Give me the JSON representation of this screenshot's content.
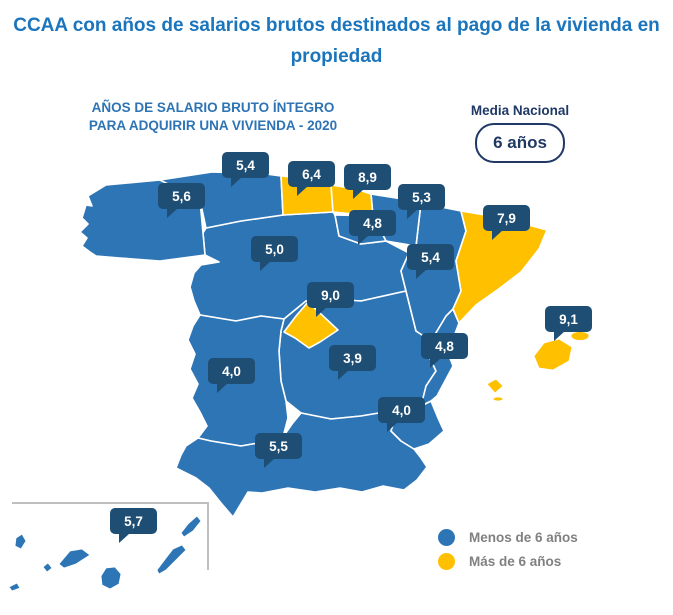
{
  "title": {
    "line1": "CCAA con años de salarios brutos destinados al pago de la vivienda en",
    "line2": "propiedad"
  },
  "subtitle": {
    "line1": "AÑOS DE SALARIO BRUTO ÍNTEGRO",
    "line2": "PARA ADQUIRIR UNA VIVIENDA - 2020"
  },
  "media_nacional": {
    "label": "Media Nacional",
    "value": "6 años"
  },
  "legend": {
    "items": [
      {
        "label": "Menos de 6 años",
        "color": "#2E75B6"
      },
      {
        "label": "Más de 6 años",
        "color": "#FFC000"
      }
    ]
  },
  "colors": {
    "under_6": "#2E75B6",
    "over_6": "#FFC000",
    "tooltip_bg": "#1F4E74",
    "title_blue": "#1B75BC",
    "subtitle_blue": "#2E74B5",
    "navy": "#1F3864",
    "legend_text": "#808080",
    "inset_border": "#BFBFBF"
  },
  "chart_data": {
    "type": "heatmap",
    "subtype": "choropleth_map_spain_ccaa",
    "title": "CCAA con años de salarios brutos destinados al pago de la vivienda en propiedad",
    "subtitle": "AÑOS DE SALARIO BRUTO ÍNTEGRO PARA ADQUIRIR UNA VIVIENDA - 2020",
    "annotation": {
      "label": "Media Nacional",
      "value": "6 años"
    },
    "legend": [
      {
        "label": "Menos de 6 años",
        "color": "#2E75B6"
      },
      {
        "label": "Más de 6 años",
        "color": "#FFC000"
      }
    ],
    "unit": "años de salario bruto",
    "year": "2020",
    "regions": [
      {
        "id": "galicia",
        "name": "Galicia",
        "label": "5,6",
        "value": 5.6,
        "category": "menos_de_6"
      },
      {
        "id": "asturias",
        "name": "Asturias",
        "label": "5,4",
        "value": 5.4,
        "category": "menos_de_6"
      },
      {
        "id": "cantabria",
        "name": "Cantabria",
        "label": "6,4",
        "value": 6.4,
        "category": "mas_de_6"
      },
      {
        "id": "pais-vasco",
        "name": "País Vasco",
        "label": "8,9",
        "value": 8.9,
        "category": "mas_de_6"
      },
      {
        "id": "navarra",
        "name": "Navarra",
        "label": "5,3",
        "value": 5.3,
        "category": "menos_de_6"
      },
      {
        "id": "la-rioja",
        "name": "La Rioja",
        "label": "4,8",
        "value": 4.8,
        "category": "menos_de_6"
      },
      {
        "id": "cataluna",
        "name": "Cataluña",
        "label": "7,9",
        "value": 7.9,
        "category": "mas_de_6"
      },
      {
        "id": "castilla-y-leon",
        "name": "Castilla y León",
        "label": "5,0",
        "value": 5.0,
        "category": "menos_de_6"
      },
      {
        "id": "aragon",
        "name": "Aragón",
        "label": "5,4",
        "value": 5.4,
        "category": "menos_de_6"
      },
      {
        "id": "madrid",
        "name": "Comunidad de Madrid",
        "label": "9,0",
        "value": 9.0,
        "category": "mas_de_6"
      },
      {
        "id": "baleares",
        "name": "Islas Baleares",
        "label": "9,1",
        "value": 9.1,
        "category": "mas_de_6"
      },
      {
        "id": "c-valenciana",
        "name": "Comunidad Valenciana",
        "label": "4,8",
        "value": 4.8,
        "category": "menos_de_6"
      },
      {
        "id": "castilla-la-mancha",
        "name": "Castilla-La Mancha",
        "label": "3,9",
        "value": 3.9,
        "category": "menos_de_6"
      },
      {
        "id": "extremadura",
        "name": "Extremadura",
        "label": "4,0",
        "value": 4.0,
        "category": "menos_de_6"
      },
      {
        "id": "murcia",
        "name": "Región de Murcia",
        "label": "4,0",
        "value": 4.0,
        "category": "menos_de_6"
      },
      {
        "id": "andalucia",
        "name": "Andalucía",
        "label": "5,5",
        "value": 5.5,
        "category": "menos_de_6"
      },
      {
        "id": "canarias",
        "name": "Islas Canarias",
        "label": "5,7",
        "value": 5.7,
        "category": "menos_de_6"
      }
    ]
  }
}
